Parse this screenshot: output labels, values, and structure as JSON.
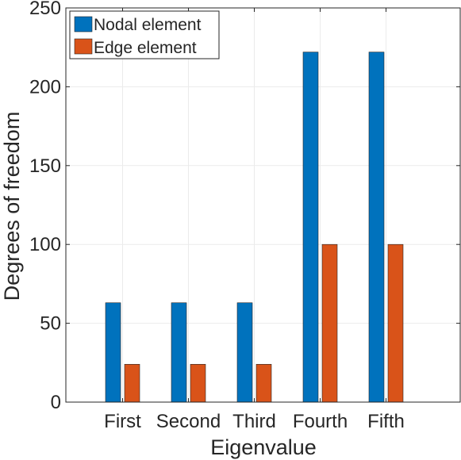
{
  "chart_data": {
    "type": "bar",
    "title": "",
    "xlabel": "Eigenvalue",
    "ylabel": "Degrees of freedom",
    "categories": [
      "First",
      "Second",
      "Third",
      "Fourth",
      "Fifth"
    ],
    "series": [
      {
        "name": "Nodal element",
        "color": "#0072BD",
        "values": [
          63,
          63,
          63,
          222,
          222
        ]
      },
      {
        "name": "Edge element",
        "color": "#D95319",
        "values": [
          24,
          24,
          24,
          100,
          100
        ]
      }
    ],
    "ylim": [
      0,
      250
    ],
    "yticks": [
      0,
      50,
      100,
      150,
      200,
      250
    ],
    "grid": true,
    "legend_position": "top-left"
  }
}
